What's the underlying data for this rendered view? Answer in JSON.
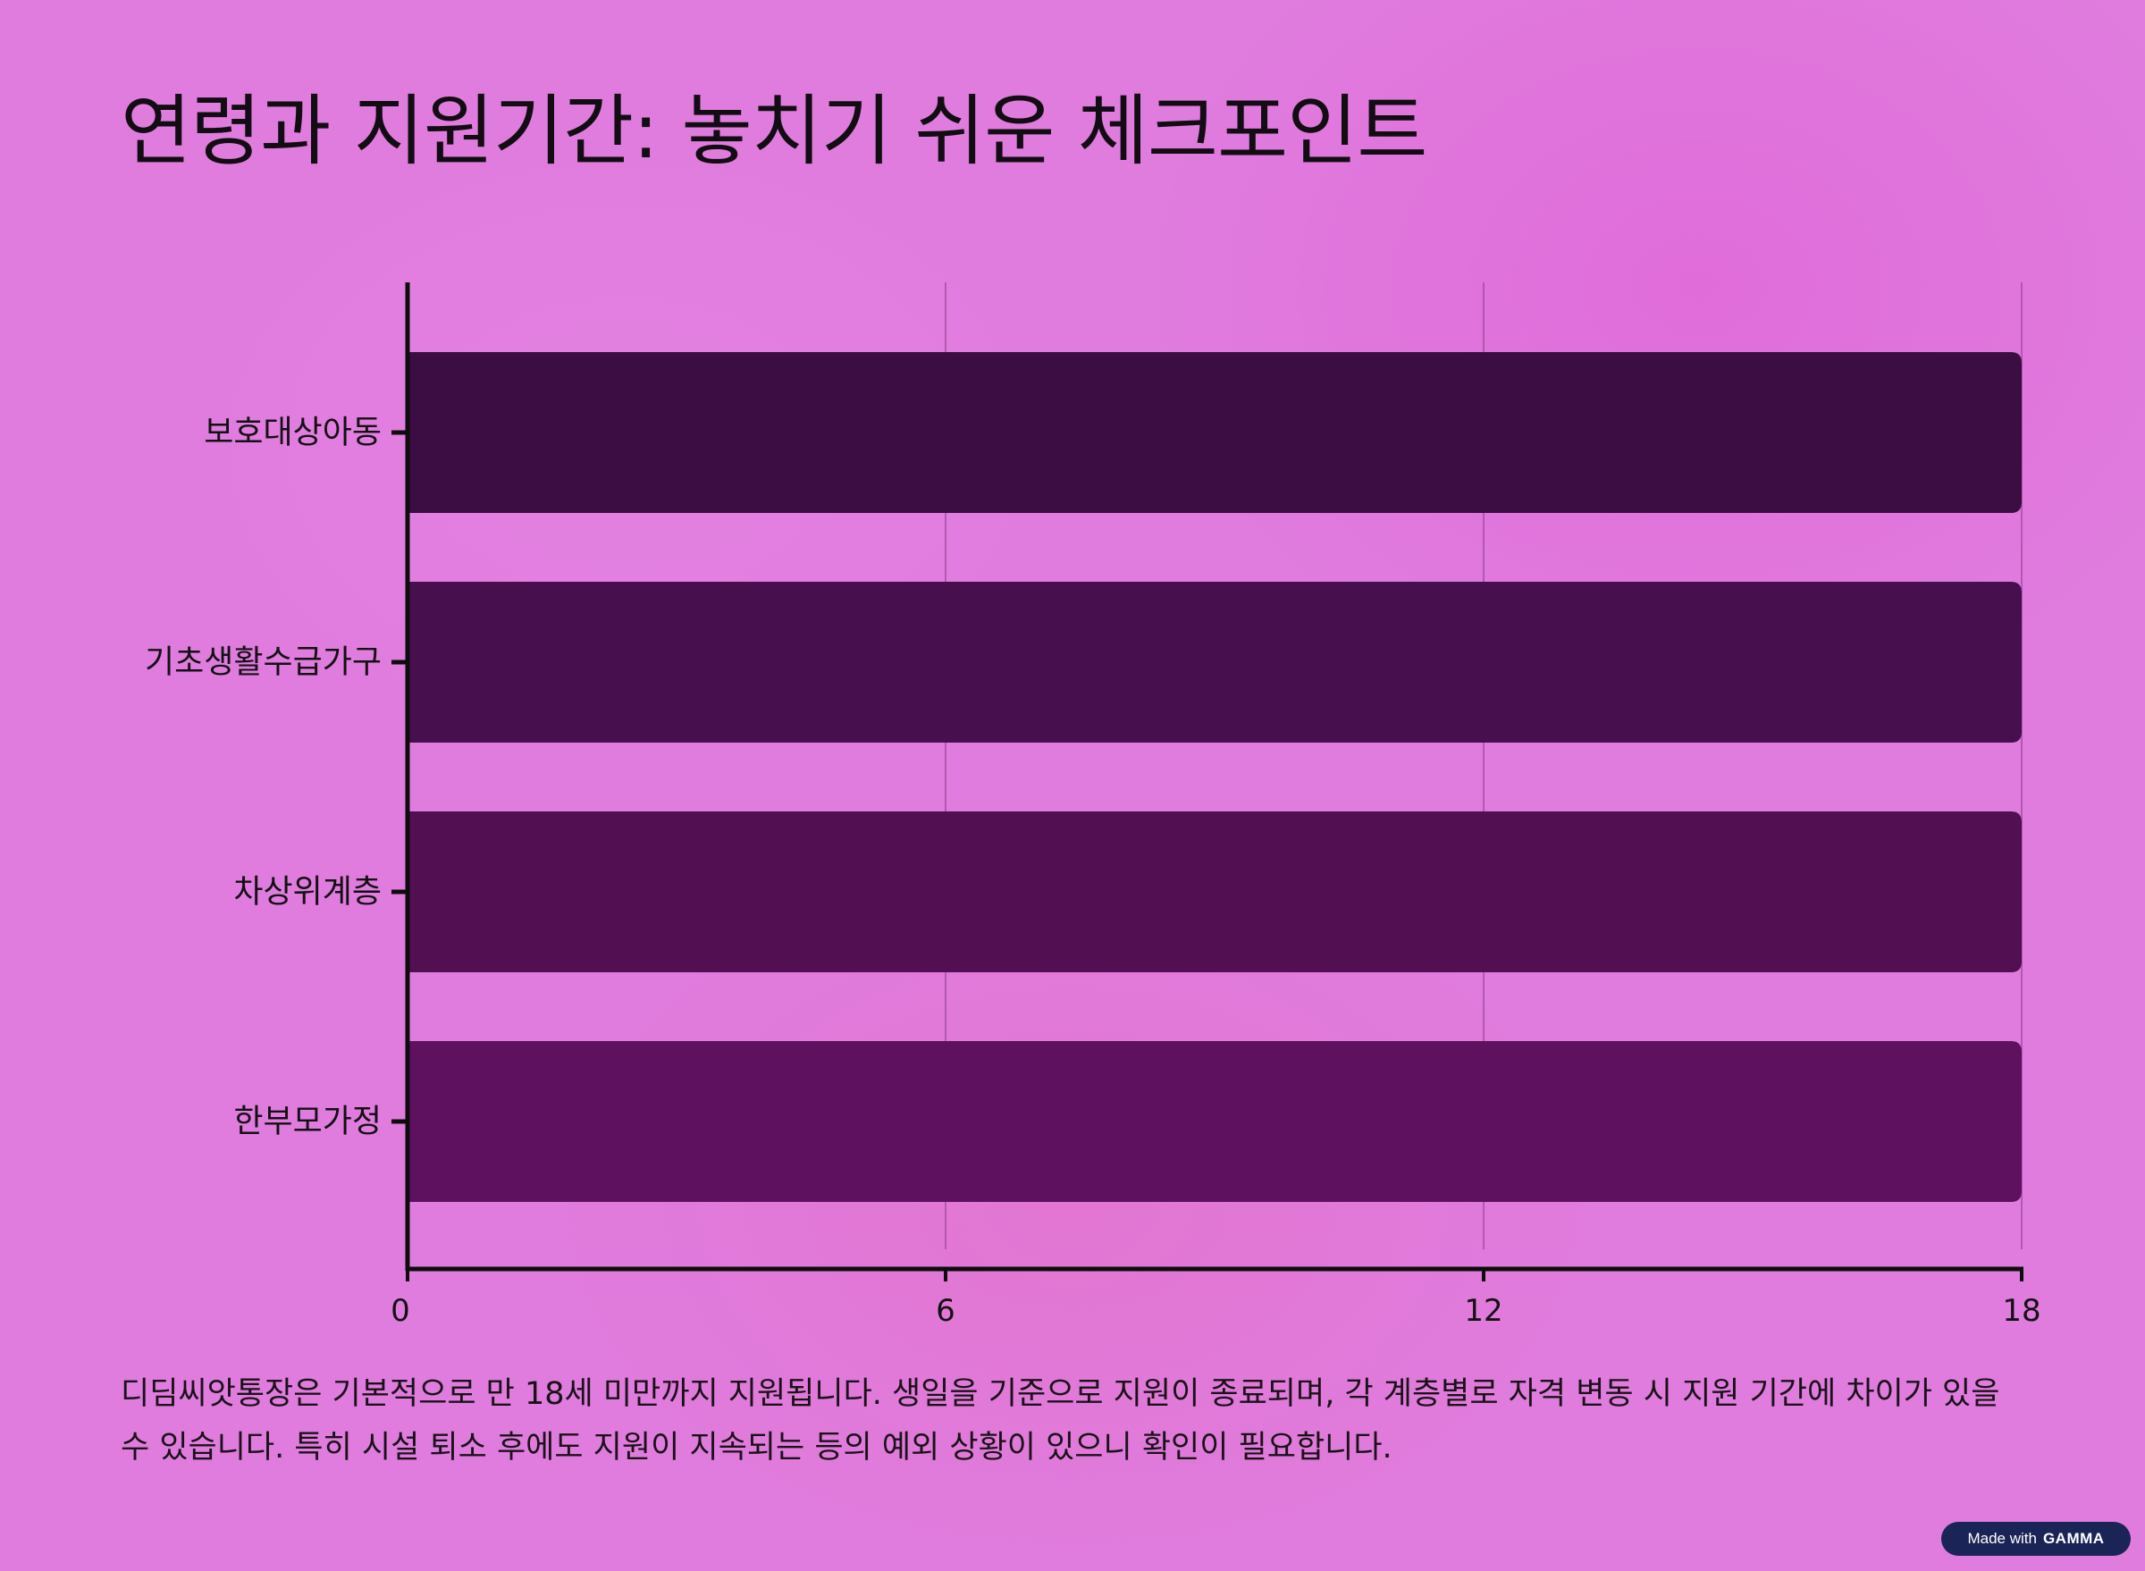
{
  "title": "연령과 지원기간: 놓치기 쉬운 체크포인트",
  "description": "디딤씨앗통장은 기본적으로 만 18세 미만까지 지원됩니다. 생일을 기준으로 지원이 종료되며, 각 계층별로 자격 변동 시 지원 기간에 차이가 있을 수 있습니다. 특히 시설 퇴소 후에도 지원이 지속되는 등의 예외 상황이 있으니 확인이 필요합니다.",
  "badge": {
    "text": "Made with",
    "brand": "GAMMA"
  },
  "chart_data": {
    "type": "bar",
    "orientation": "horizontal",
    "categories": [
      "보호대상아동",
      "기초생활수급가구",
      "차상위계층",
      "한부모가정"
    ],
    "values": [
      18,
      18,
      18,
      18
    ],
    "xlim": [
      0,
      18
    ],
    "xticks": [
      0,
      6,
      12,
      18
    ],
    "grid": true,
    "bar_colors": [
      "#3b0d43",
      "#470f4e",
      "#521053",
      "#5e115f"
    ]
  }
}
